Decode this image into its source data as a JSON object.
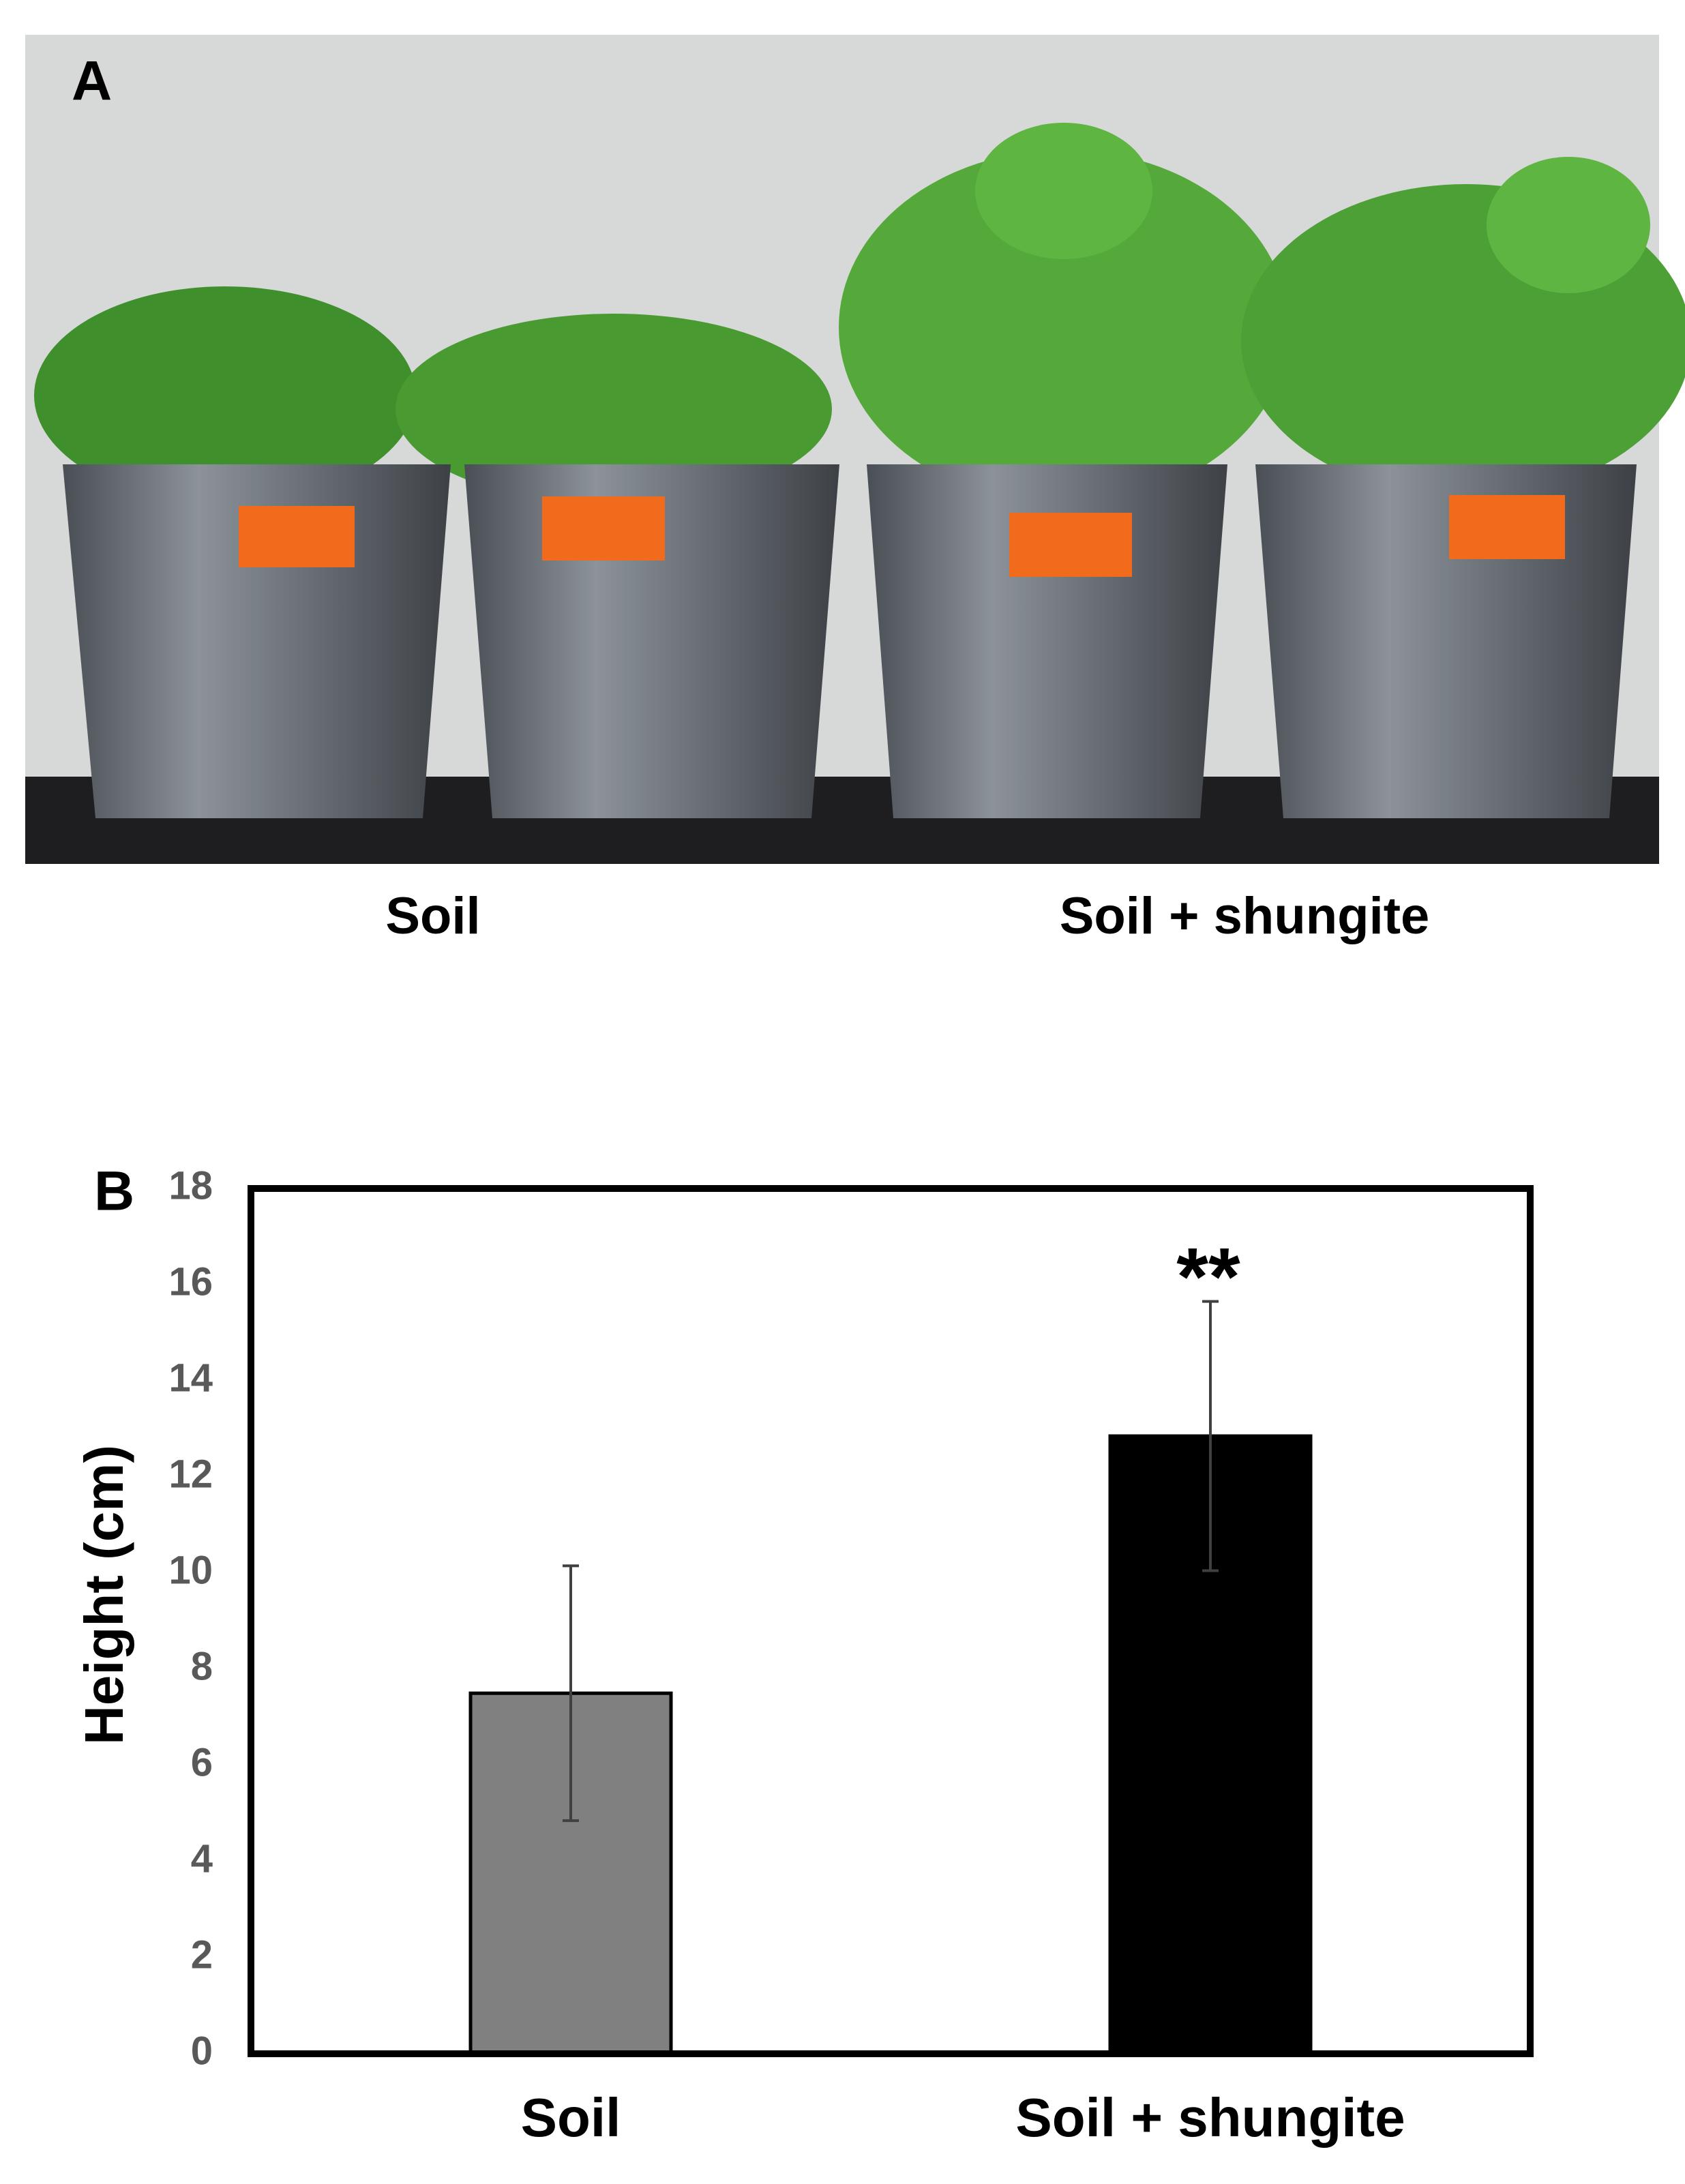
{
  "panel_a": {
    "label": "A",
    "captions": [
      "Soil",
      "Soil + shungite"
    ]
  },
  "chart_data": {
    "type": "bar",
    "panel_label": "B",
    "y_label": "Height (cm)",
    "categories": [
      "Soil",
      "Soil + shungite"
    ],
    "values": [
      7.5,
      12.85
    ],
    "errors": [
      2.65,
      2.8
    ],
    "colors": [
      "#808080",
      "#000000"
    ],
    "annotation": "**",
    "ylim": [
      0,
      18
    ],
    "yticks": [
      0,
      2,
      4,
      6,
      8,
      10,
      12,
      14,
      16,
      18
    ],
    "grid": false
  }
}
